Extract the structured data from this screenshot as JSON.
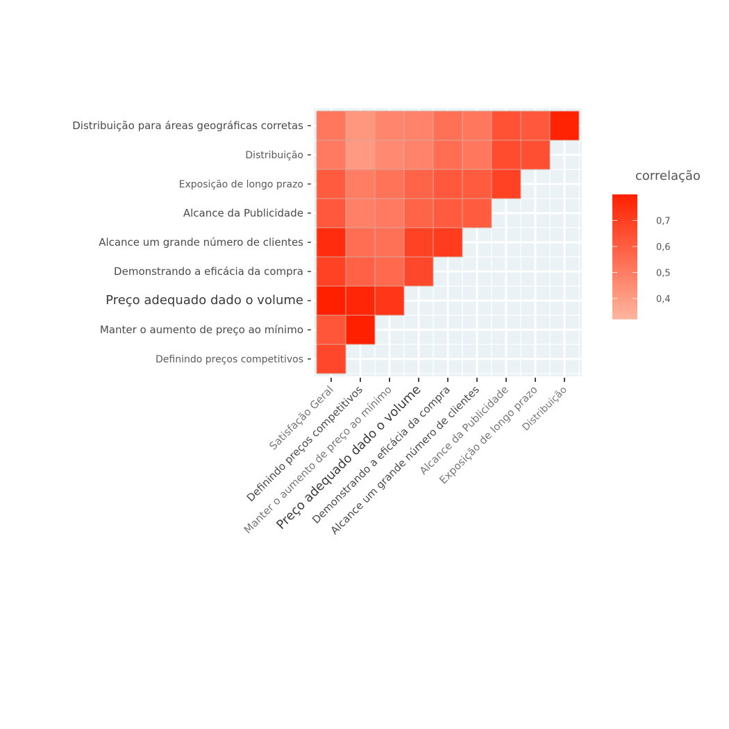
{
  "chart_data": {
    "type": "heatmap",
    "title": "",
    "xlabel": "",
    "ylabel": "",
    "x_categories": [
      "Satisfação Geral",
      "Definindo preços competitivos",
      "Manter o aumento de preço ao mínimo",
      "Preço adequado dado o volume",
      "Demonstrando a eficácia da compra",
      "Alcance um grande número de clientes",
      "Alcance da Publicidade",
      "Exposição de longo prazo",
      "Distribuição"
    ],
    "y_categories_top_to_bottom": [
      "Distribuição para áreas geográficas corretas",
      "Distribuição",
      "Exposição de longo prazo",
      "Alcance da Publicidade",
      "Alcance um grande número de clientes",
      "Demonstrando a eficácia da compra",
      "Preço adequado dado o volume",
      "Manter o aumento de preço ao mínimo",
      "Definindo preços competitivos"
    ],
    "values": [
      [
        0.52,
        0.42,
        0.47,
        0.48,
        0.54,
        0.52,
        0.64,
        0.62,
        0.79
      ],
      [
        0.51,
        0.41,
        0.46,
        0.48,
        0.55,
        0.52,
        0.66,
        0.65
      ],
      [
        0.61,
        0.5,
        0.53,
        0.58,
        0.62,
        0.61,
        0.69
      ],
      [
        0.62,
        0.49,
        0.51,
        0.58,
        0.61,
        0.61
      ],
      [
        0.76,
        0.55,
        0.54,
        0.69,
        0.71
      ],
      [
        0.69,
        0.59,
        0.56,
        0.67
      ],
      [
        0.81,
        0.78,
        0.73
      ],
      [
        0.63,
        0.8
      ],
      [
        0.67
      ]
    ],
    "legend": {
      "title": "correlação",
      "placement": "right",
      "range": [
        0.32,
        0.8
      ],
      "ticks": [
        0.7,
        0.6,
        0.5,
        0.4
      ],
      "tick_labels": [
        "0,7",
        "0,6",
        "0,5",
        "0,4"
      ]
    },
    "colors": {
      "low": "#FFB59F",
      "high": "#FF2000",
      "panel_background": "#EAF2F5",
      "grid": "#FFFFFF",
      "tile_border": "#D9A79A"
    },
    "grid": true
  }
}
